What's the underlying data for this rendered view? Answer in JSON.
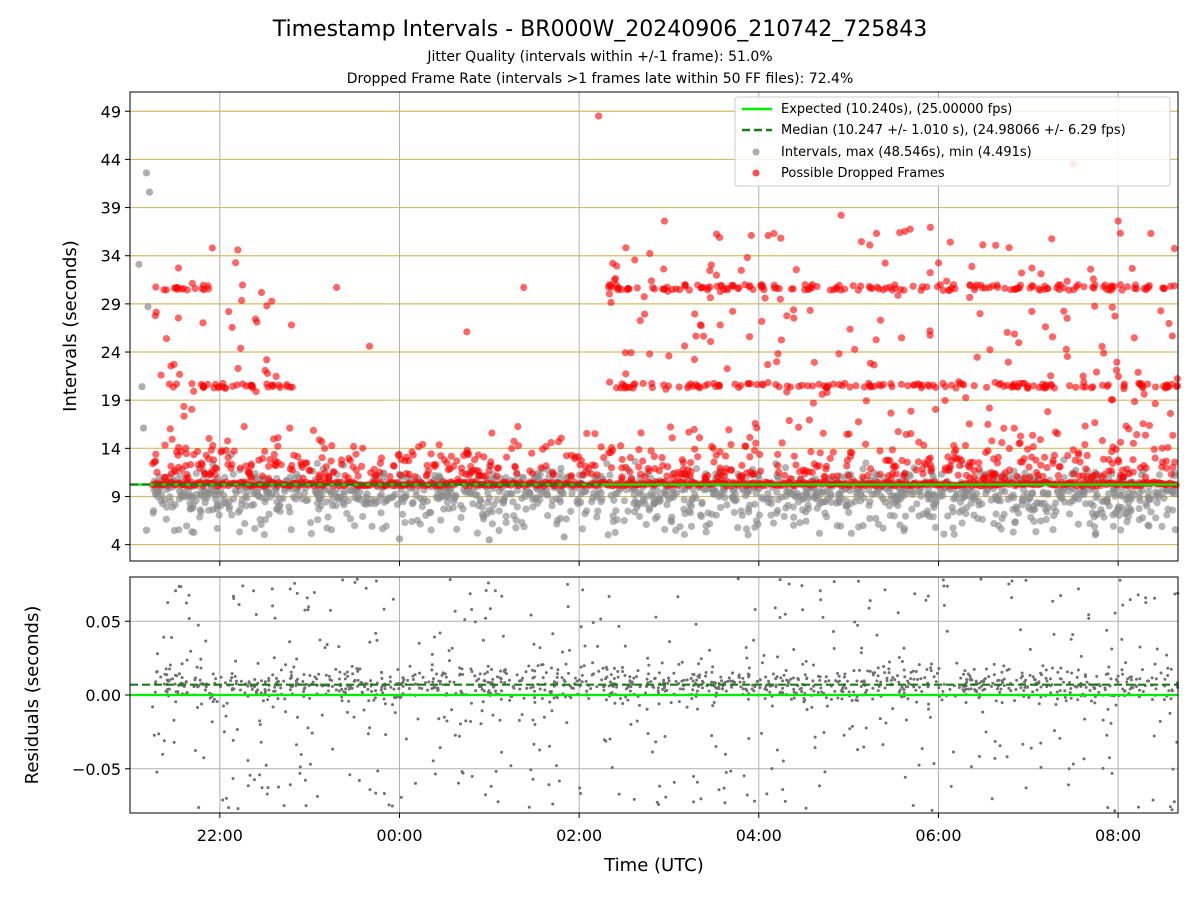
{
  "title": "Timestamp Intervals - BR000W_20240906_210742_725843",
  "subtitle1": "Jitter Quality (intervals within +/-1 frame): 51.0%",
  "subtitle2": "Dropped Frame Rate (intervals >1 frames late within 50 FF files): 72.4%",
  "colors": {
    "expected": "#00ee00",
    "median": "#1b7a1b",
    "intervals": "#8c8c8c",
    "dropped": "#ff0000",
    "hgrid_top": "#d4bc6a",
    "grid": "#b0b0b0",
    "residual": "#707070"
  },
  "chart_data": [
    {
      "type": "scatter",
      "ylabel": "Intervals (seconds)",
      "xlabel": "",
      "x_range": [
        "21:00",
        "08:40"
      ],
      "ylim": [
        2.3,
        51.0
      ],
      "yticks": [
        4,
        9,
        14,
        19,
        24,
        29,
        34,
        39,
        44,
        49
      ],
      "xticks": [
        "22:00",
        "00:00",
        "02:00",
        "04:00",
        "06:00",
        "08:00"
      ],
      "grid": true,
      "legend_position": "top-right",
      "legend": [
        "Expected (10.240s), (25.00000 fps)",
        "Median (10.247 +/- 1.010 s), (24.98066 +/- 6.29 fps)",
        "Intervals, max (48.546s), min (4.491s)",
        "Possible Dropped Frames"
      ],
      "expected_interval": 10.24,
      "median_interval": 10.247,
      "interval_max": 48.546,
      "interval_min": 4.491,
      "start_time": "21:07",
      "end_time": "08:40",
      "series": [
        {
          "name": "Intervals, max (48.546s), min (4.491s)",
          "description": "dense scatter of normal intervals around 8.5-12 s with spread down to ~4.5 s; early outliers",
          "outliers": [
            {
              "x": "21:06",
              "y": 33.1
            },
            {
              "x": "21:08",
              "y": 20.4
            },
            {
              "x": "21:09",
              "y": 16.1
            },
            {
              "x": "21:11",
              "y": 42.6
            },
            {
              "x": "21:13",
              "y": 40.6
            },
            {
              "x": "21:12",
              "y": 28.7
            },
            {
              "x": "21:11",
              "y": 5.5
            },
            {
              "x": "00:00",
              "y": 4.6
            },
            {
              "x": "01:00",
              "y": 4.5
            },
            {
              "x": "01:50",
              "y": 4.8
            },
            {
              "x": "07:45",
              "y": 5.2
            }
          ]
        },
        {
          "name": "Possible Dropped Frames",
          "description": "bands near 10.3, 20.5 and 30.7 s; scattered points up to 48.5 s",
          "bands": [
            {
              "y": 10.3,
              "ranges": [
                [
                  "21:15",
                  "08:40"
                ]
              ]
            },
            {
              "y": 20.5,
              "ranges": [
                [
                  "21:17",
                  "22:50"
                ],
                [
                  "02:25",
                  "08:40"
                ]
              ]
            },
            {
              "y": 30.7,
              "ranges": [
                [
                  "21:17",
                  "21:55"
                ],
                [
                  "02:15",
                  "08:40"
                ]
              ]
            }
          ],
          "outliers": [
            {
              "x": "02:13",
              "y": 48.5
            },
            {
              "x": "07:30",
              "y": 43.5
            },
            {
              "x": "04:55",
              "y": 38.2
            },
            {
              "x": "08:00",
              "y": 37.6
            },
            {
              "x": "02:57",
              "y": 37.6
            },
            {
              "x": "03:55",
              "y": 36.1
            },
            {
              "x": "21:55",
              "y": 34.8
            },
            {
              "x": "22:12",
              "y": 34.6
            },
            {
              "x": "00:45",
              "y": 26.1
            },
            {
              "x": "23:40",
              "y": 24.6
            },
            {
              "x": "23:18",
              "y": 30.7
            },
            {
              "x": "01:23",
              "y": 30.7
            }
          ]
        },
        {
          "name": "Expected (10.240s), (25.00000 fps)",
          "y": 10.24
        },
        {
          "name": "Median (10.247 +/- 1.010 s), (24.98066 +/- 6.29 fps)",
          "y": 10.247
        }
      ]
    },
    {
      "type": "scatter",
      "ylabel": "Residuals (seconds)",
      "xlabel": "Time (UTC)",
      "x_range": [
        "21:00",
        "08:40"
      ],
      "ylim": [
        -0.08,
        0.08
      ],
      "yticks": [
        -0.05,
        0.0,
        0.05
      ],
      "ytick_labels": [
        "−0.05",
        "0.00",
        "0.05"
      ],
      "xticks": [
        "22:00",
        "00:00",
        "02:00",
        "04:00",
        "06:00",
        "08:00"
      ],
      "grid": true,
      "expected_line": 0.0,
      "median_line": 0.007,
      "series": [
        {
          "description": "residual scatter concentrated within ±0.015 s around 0.007, sparse points out to ±0.08 s"
        }
      ]
    }
  ]
}
